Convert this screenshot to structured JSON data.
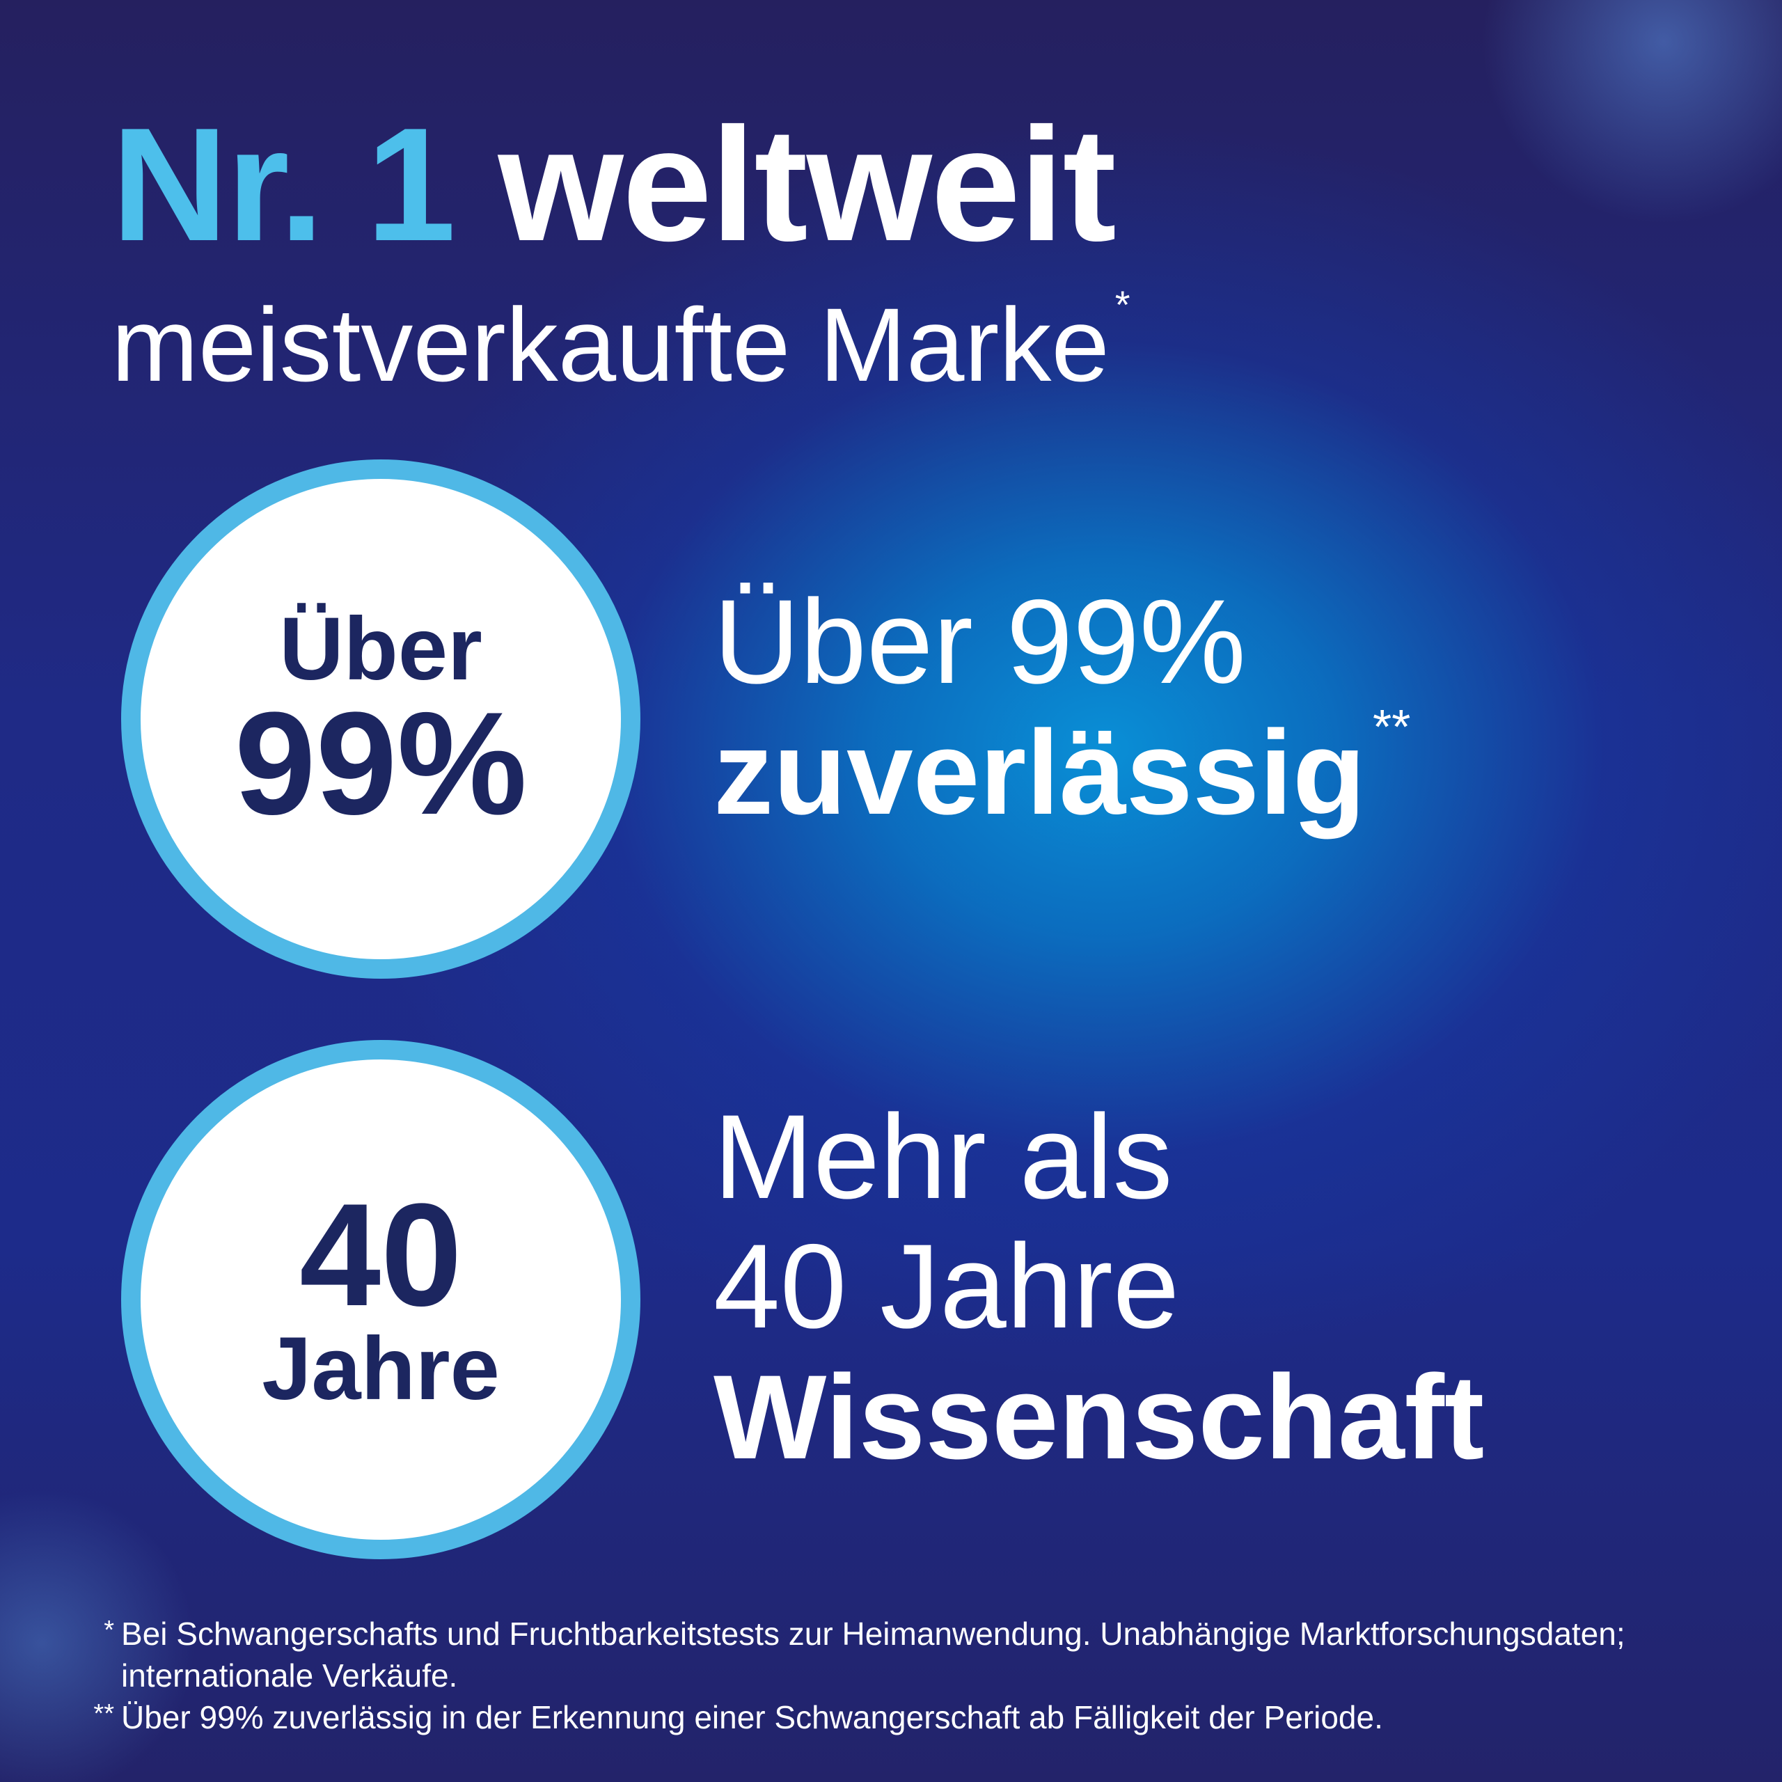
{
  "headline": {
    "accent": "Nr. 1",
    "main": "weltweit",
    "subline": "meistverkaufte Marke",
    "subline_mark": "*"
  },
  "badges": [
    {
      "top": "Über",
      "bottom": "99%"
    },
    {
      "top": "40",
      "bottom": "Jahre"
    }
  ],
  "stats": [
    {
      "line1": "Über 99%",
      "bold": "zuverlässig",
      "mark": "**"
    },
    {
      "line1": "Mehr als",
      "line2": "40 Jahre",
      "bold": "Wissenschaft"
    }
  ],
  "footnotes": [
    {
      "mark": "*",
      "text": "Bei Schwangerschafts und Fruchtbarkeitstests zur Heimanwendung. Unabhängige Marktforschungsdaten; internationale Verkäufe."
    },
    {
      "mark": "**",
      "text": "Über 99% zuverlässig in der Erkennung einer Schwangerschaft ab Fälligkeit der Periode."
    }
  ],
  "colors": {
    "accent": "#4dbfeb",
    "badge_ring": "#4fb8e6",
    "badge_text": "#1c2660",
    "background_deep": "#1f2a86",
    "background_glow": "#0a8fd6"
  }
}
